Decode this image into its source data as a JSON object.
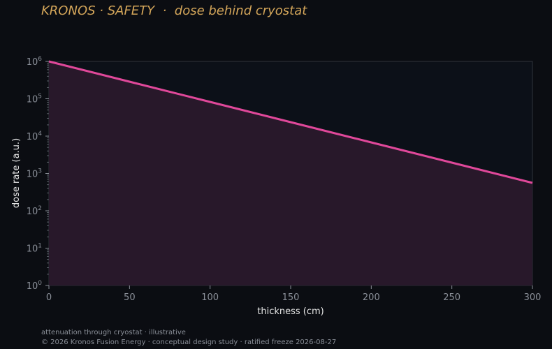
{
  "title": "KRONOS · SAFETY  ·  dose behind cryostat",
  "footer": {
    "note": "attenuation through cryostat · illustrative",
    "copyright": "© 2026 Kronos Fusion Energy · conceptual design study · ratified freeze 2026-08-27"
  },
  "colors": {
    "background": "#0b0d12",
    "plot_background": "#0c1018",
    "line": "#e0489a",
    "fill": "#28182a",
    "title": "#d4a65a"
  },
  "chart_data": {
    "type": "area",
    "xlabel": "thickness (cm)",
    "ylabel": "dose rate (a.u.)",
    "xlim": [
      0,
      300
    ],
    "ylim": [
      1,
      1000000
    ],
    "yscale": "log",
    "grid": false,
    "x_ticks": [
      0,
      50,
      100,
      150,
      200,
      250,
      300
    ],
    "x_tick_labels": [
      "0",
      "50",
      "100",
      "150",
      "200",
      "250",
      "300"
    ],
    "y_ticks": [
      1,
      10,
      100,
      1000,
      10000,
      100000,
      1000000
    ],
    "y_tick_labels": [
      {
        "base": "10",
        "exp": "0"
      },
      {
        "base": "10",
        "exp": "1"
      },
      {
        "base": "10",
        "exp": "2"
      },
      {
        "base": "10",
        "exp": "3"
      },
      {
        "base": "10",
        "exp": "4"
      },
      {
        "base": "10",
        "exp": "5"
      },
      {
        "base": "10",
        "exp": "6"
      }
    ],
    "series": [
      {
        "x": [
          0,
          50,
          100,
          150,
          200,
          250,
          300
        ],
        "y": [
          1000000,
          287000,
          82500,
          23700,
          6800,
          1950,
          560
        ]
      }
    ]
  }
}
